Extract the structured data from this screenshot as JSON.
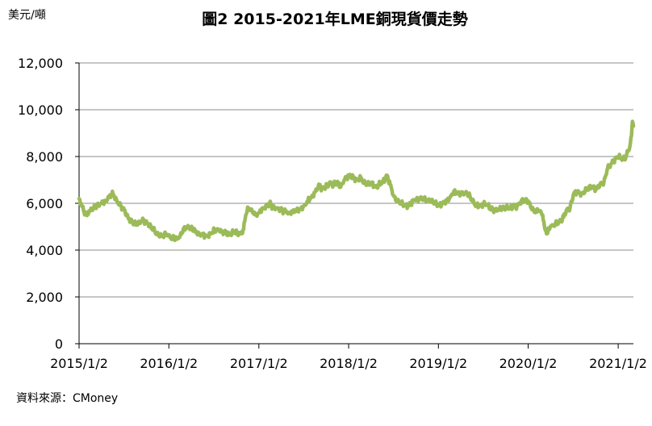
{
  "chart_data": {
    "type": "line",
    "title": "圖2 2015-2021年LME銅現貨價走勢",
    "unit_label": "美元/噸",
    "source": "資料來源：CMoney",
    "x_tick_labels": [
      "2015/1/2",
      "2016/1/2",
      "2017/1/2",
      "2018/1/2",
      "2019/1/2",
      "2020/1/2",
      "2021/1/2"
    ],
    "y_tick_labels": [
      "0",
      "2,000",
      "4,000",
      "6,000",
      "8,000",
      "10,000",
      "12,000"
    ],
    "ylim": [
      0,
      12000
    ],
    "xlim": [
      "2015-01-02",
      "2021-03-05"
    ],
    "grid": true,
    "line_color": "#9BBB59",
    "series": [
      {
        "x": [
          "2015-01-02",
          "2015-01-20",
          "2015-02-01",
          "2015-02-15",
          "2015-03-01",
          "2015-03-15",
          "2015-04-01",
          "2015-04-20",
          "2015-05-05",
          "2015-05-20",
          "2015-06-05",
          "2015-06-20",
          "2015-07-05",
          "2015-07-20",
          "2015-08-05",
          "2015-08-20",
          "2015-09-05",
          "2015-09-20",
          "2015-10-05",
          "2015-10-20",
          "2015-11-05",
          "2015-11-20",
          "2015-12-05",
          "2015-12-20",
          "2016-01-02",
          "2016-01-15",
          "2016-02-01",
          "2016-02-15",
          "2016-03-01",
          "2016-03-15",
          "2016-04-01",
          "2016-04-20",
          "2016-05-05",
          "2016-05-20",
          "2016-06-05",
          "2016-06-20",
          "2016-07-05",
          "2016-07-20",
          "2016-08-05",
          "2016-08-20",
          "2016-09-05",
          "2016-09-20",
          "2016-10-05",
          "2016-10-20",
          "2016-11-01",
          "2016-11-10",
          "2016-11-20",
          "2016-12-05",
          "2016-12-20",
          "2017-01-02",
          "2017-01-20",
          "2017-02-05",
          "2017-02-15",
          "2017-03-01",
          "2017-03-15",
          "2017-04-01",
          "2017-04-20",
          "2017-05-05",
          "2017-05-20",
          "2017-06-05",
          "2017-06-20",
          "2017-07-05",
          "2017-07-20",
          "2017-08-05",
          "2017-08-20",
          "2017-09-05",
          "2017-09-15",
          "2017-10-01",
          "2017-10-15",
          "2017-11-01",
          "2017-11-15",
          "2017-12-01",
          "2017-12-15",
          "2018-01-02",
          "2018-01-20",
          "2018-02-05",
          "2018-02-20",
          "2018-03-05",
          "2018-03-20",
          "2018-04-05",
          "2018-04-20",
          "2018-05-05",
          "2018-05-20",
          "2018-06-07",
          "2018-06-20",
          "2018-07-05",
          "2018-07-20",
          "2018-08-05",
          "2018-08-20",
          "2018-09-05",
          "2018-09-20",
          "2018-10-05",
          "2018-10-20",
          "2018-11-05",
          "2018-11-20",
          "2018-12-05",
          "2018-12-20",
          "2019-01-02",
          "2019-01-20",
          "2019-02-05",
          "2019-02-20",
          "2019-03-05",
          "2019-03-20",
          "2019-04-05",
          "2019-04-20",
          "2019-05-05",
          "2019-05-20",
          "2019-06-05",
          "2019-06-20",
          "2019-07-05",
          "2019-07-20",
          "2019-08-05",
          "2019-08-20",
          "2019-09-05",
          "2019-09-20",
          "2019-10-05",
          "2019-10-20",
          "2019-11-05",
          "2019-11-20",
          "2019-12-05",
          "2019-12-20",
          "2020-01-02",
          "2020-01-15",
          "2020-02-01",
          "2020-02-15",
          "2020-03-01",
          "2020-03-10",
          "2020-03-19",
          "2020-04-01",
          "2020-04-20",
          "2020-05-05",
          "2020-05-20",
          "2020-06-05",
          "2020-06-20",
          "2020-07-05",
          "2020-07-20",
          "2020-08-05",
          "2020-08-20",
          "2020-09-05",
          "2020-09-20",
          "2020-10-05",
          "2020-10-20",
          "2020-11-05",
          "2020-11-20",
          "2020-12-05",
          "2020-12-20",
          "2021-01-02",
          "2021-01-15",
          "2021-02-01",
          "2021-02-10",
          "2021-02-18",
          "2021-02-25",
          "2021-03-01",
          "2021-03-05"
        ],
        "y": [
          6200,
          5700,
          5500,
          5700,
          5800,
          5900,
          6000,
          6100,
          6300,
          6400,
          6100,
          5900,
          5700,
          5400,
          5200,
          5100,
          5200,
          5300,
          5150,
          5050,
          4800,
          4650,
          4600,
          4700,
          4650,
          4500,
          4500,
          4550,
          4900,
          5000,
          4950,
          4800,
          4700,
          4650,
          4600,
          4700,
          4850,
          4900,
          4800,
          4750,
          4650,
          4800,
          4750,
          4700,
          4900,
          5500,
          5800,
          5700,
          5500,
          5600,
          5800,
          5900,
          6000,
          5800,
          5800,
          5700,
          5650,
          5600,
          5650,
          5700,
          5750,
          5900,
          6100,
          6300,
          6500,
          6800,
          6600,
          6700,
          6850,
          6800,
          6900,
          6700,
          7000,
          7200,
          7100,
          7000,
          7100,
          6900,
          6800,
          6900,
          6700,
          6800,
          6900,
          7200,
          6800,
          6300,
          6100,
          6000,
          5900,
          5900,
          6100,
          6200,
          6200,
          6200,
          6150,
          6100,
          6000,
          5900,
          6000,
          6100,
          6300,
          6500,
          6450,
          6400,
          6450,
          6400,
          6100,
          5900,
          5900,
          5950,
          5950,
          5750,
          5700,
          5750,
          5800,
          5800,
          5800,
          5850,
          5900,
          6100,
          6150,
          6100,
          5800,
          5600,
          5700,
          5500,
          4900,
          4700,
          5000,
          5100,
          5200,
          5300,
          5700,
          5800,
          6400,
          6500,
          6400,
          6500,
          6700,
          6700,
          6600,
          6800,
          6900,
          7500,
          7700,
          7900,
          8000,
          7900,
          7900,
          8200,
          8400,
          8900,
          9500,
          9300
        ]
      }
    ]
  }
}
